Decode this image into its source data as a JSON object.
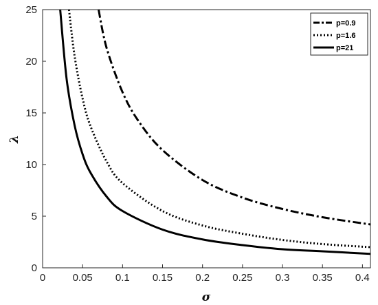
{
  "chart_data": {
    "type": "line",
    "xlabel": "σ",
    "ylabel": "λ",
    "xlim": [
      0,
      0.41
    ],
    "ylim": [
      0,
      25
    ],
    "x_ticks": [
      0,
      0.05,
      0.1,
      0.15,
      0.2,
      0.25,
      0.3,
      0.35,
      0.4
    ],
    "x_tick_labels": [
      "0",
      "0.05",
      "0.1",
      "0.15",
      "0.2",
      "0.25",
      "0.3",
      "0.35",
      "0.4"
    ],
    "y_ticks": [
      0,
      5,
      10,
      15,
      20,
      25
    ],
    "y_tick_labels": [
      "0",
      "5",
      "10",
      "15",
      "20",
      "25"
    ],
    "grid": false,
    "legend_position": "top-right",
    "series": [
      {
        "name": "p=0.9",
        "style": "dashdot",
        "color": "#000000",
        "x": [
          0.07,
          0.08,
          0.1,
          0.12,
          0.15,
          0.2,
          0.25,
          0.3,
          0.35,
          0.41
        ],
        "y": [
          25.0,
          21.3,
          17.0,
          14.2,
          11.4,
          8.5,
          6.8,
          5.7,
          4.9,
          4.2
        ]
      },
      {
        "name": "p=1.6",
        "style": "dotted",
        "color": "#000000",
        "x": [
          0.033,
          0.04,
          0.05,
          0.06,
          0.08,
          0.1,
          0.15,
          0.2,
          0.25,
          0.3,
          0.35,
          0.41
        ],
        "y": [
          25.0,
          20.5,
          16.4,
          13.7,
          10.3,
          8.2,
          5.5,
          4.1,
          3.3,
          2.7,
          2.3,
          2.0
        ]
      },
      {
        "name": "p=21",
        "style": "solid",
        "color": "#000000",
        "x": [
          0.022,
          0.03,
          0.04,
          0.05,
          0.06,
          0.08,
          0.1,
          0.15,
          0.2,
          0.25,
          0.3,
          0.35,
          0.41
        ],
        "y": [
          25.0,
          18.3,
          13.8,
          11.0,
          9.2,
          6.9,
          5.5,
          3.7,
          2.75,
          2.2,
          1.8,
          1.6,
          1.35
        ]
      }
    ]
  }
}
